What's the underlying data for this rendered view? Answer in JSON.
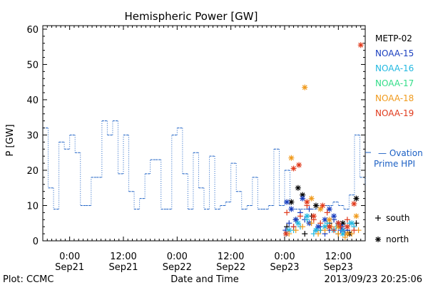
{
  "chart_data": {
    "type": "line",
    "title": "Hemispheric Power [GW]",
    "ylabel": "P [GW]",
    "xlabel": "Date and Time",
    "ylim": [
      0,
      61
    ],
    "xlim_hours": [
      -6,
      66
    ],
    "yticks": [
      0,
      10,
      20,
      30,
      40,
      50,
      60
    ],
    "xticks": [
      {
        "hour": 0,
        "time": "0:00",
        "date": "Sep21"
      },
      {
        "hour": 12,
        "time": "12:00",
        "date": "Sep21"
      },
      {
        "hour": 24,
        "time": "0:00",
        "date": "Sep22"
      },
      {
        "hour": 36,
        "time": "12:00",
        "date": "Sep22"
      },
      {
        "hour": 48,
        "time": "0:00",
        "date": "Sep23"
      },
      {
        "hour": 60,
        "time": "12:00",
        "date": "Sep23"
      }
    ],
    "footer_left": "Plot: CCMC",
    "footer_right": "2013/09/23 20:25:06",
    "legend": [
      {
        "name": "METP-02",
        "color": "#000000"
      },
      {
        "name": "NOAA-15",
        "color": "#1a3fbf"
      },
      {
        "name": "NOAA-16",
        "color": "#22b8e0"
      },
      {
        "name": "NOAA-17",
        "color": "#33dd88"
      },
      {
        "name": "NOAA-18",
        "color": "#f09a1c"
      },
      {
        "name": "NOAA-19",
        "color": "#e03a1c"
      }
    ],
    "marker_legend": [
      {
        "symbol": "+",
        "label": "south"
      },
      {
        "symbol": "*",
        "label": "north"
      }
    ],
    "ovation_label": [
      "— Ovation",
      "Prime HPI"
    ],
    "ovation_color": "#1a5fc4",
    "ovation_hpi": {
      "x": [
        -6,
        -4.8,
        -3.6,
        -2.4,
        -1.2,
        0,
        1.2,
        2.4,
        3.6,
        4.8,
        6,
        7.2,
        8.4,
        9.6,
        10.8,
        12,
        13.2,
        14.4,
        15.6,
        16.8,
        18,
        19.2,
        20.4,
        21.6,
        22.8,
        24,
        25.2,
        26.4,
        27.6,
        28.8,
        30,
        31.2,
        32.4,
        33.6,
        34.8,
        36,
        37.2,
        38.4,
        39.6,
        40.8,
        42,
        43.2,
        44.4,
        45.6,
        46.8,
        48,
        49.2,
        50.4,
        51.6,
        52.8,
        54,
        55.2,
        56.4,
        57.6,
        58.8,
        60,
        61.2,
        62.4,
        63.6,
        64.8,
        66
      ],
      "y": [
        32,
        15,
        9,
        28,
        26,
        30,
        25,
        10,
        10,
        18,
        18,
        34,
        30,
        34,
        19,
        30,
        14,
        9,
        12,
        19,
        23,
        23,
        9,
        9,
        30,
        32,
        19,
        9,
        25,
        15,
        9,
        24,
        9,
        10,
        11,
        22,
        14,
        9,
        10,
        18,
        9,
        9,
        10,
        26,
        10,
        20,
        9,
        9,
        9,
        9,
        9,
        10,
        10,
        10,
        11,
        10,
        9,
        13,
        30,
        18,
        16
      ]
    },
    "scatter": [
      {
        "sat": "METP-02",
        "marker": "+",
        "points": [
          [
            48.5,
            4
          ],
          [
            50.5,
            6
          ],
          [
            52.5,
            2
          ],
          [
            54,
            7
          ],
          [
            56,
            3
          ],
          [
            58,
            5
          ],
          [
            60,
            2
          ],
          [
            62,
            3
          ],
          [
            64,
            5
          ]
        ]
      },
      {
        "sat": "METP-02",
        "marker": "*",
        "points": [
          [
            49.5,
            11
          ],
          [
            51,
            15
          ],
          [
            52,
            13
          ],
          [
            55,
            10
          ],
          [
            58,
            4
          ],
          [
            61,
            5
          ],
          [
            62.5,
            2
          ],
          [
            64,
            12
          ]
        ]
      },
      {
        "sat": "NOAA-15",
        "marker": "+",
        "points": [
          [
            48.2,
            3
          ],
          [
            49,
            5
          ],
          [
            50,
            4
          ],
          [
            51.5,
            8
          ],
          [
            52.5,
            6
          ],
          [
            53.5,
            9
          ],
          [
            55,
            3
          ],
          [
            56,
            4
          ],
          [
            57,
            2
          ],
          [
            58,
            3
          ],
          [
            59,
            6
          ],
          [
            60,
            5
          ],
          [
            60.5,
            3
          ],
          [
            61,
            4
          ],
          [
            61.5,
            2
          ],
          [
            62,
            3
          ]
        ]
      },
      {
        "sat": "NOAA-15",
        "marker": "*",
        "points": [
          [
            48.5,
            11
          ],
          [
            49.5,
            9
          ],
          [
            50.5,
            6
          ],
          [
            52,
            12
          ],
          [
            53.5,
            5
          ],
          [
            55.5,
            4
          ],
          [
            57,
            6
          ],
          [
            58,
            9
          ],
          [
            59,
            7
          ],
          [
            60,
            5
          ],
          [
            60.5,
            4
          ],
          [
            61,
            3
          ]
        ]
      },
      {
        "sat": "NOAA-16",
        "marker": "+",
        "points": [
          [
            48.4,
            2
          ],
          [
            50,
            3
          ],
          [
            51.5,
            4
          ],
          [
            53,
            6
          ],
          [
            54.5,
            2
          ],
          [
            56,
            3
          ],
          [
            57.5,
            5
          ],
          [
            59.5,
            4
          ],
          [
            61,
            3
          ],
          [
            62.5,
            5
          ],
          [
            63.5,
            4
          ]
        ]
      },
      {
        "sat": "NOAA-16",
        "marker": "*",
        "points": [
          [
            49,
            3
          ],
          [
            51,
            5
          ],
          [
            53,
            7
          ],
          [
            55,
            3
          ],
          [
            57,
            4
          ],
          [
            59,
            3
          ],
          [
            61,
            2
          ],
          [
            63,
            5
          ]
        ]
      },
      {
        "sat": "NOAA-18",
        "marker": "+",
        "points": [
          [
            49,
            2
          ],
          [
            50.5,
            3
          ],
          [
            52,
            4
          ],
          [
            54,
            5
          ],
          [
            55.5,
            2
          ],
          [
            57,
            3
          ],
          [
            58.5,
            4
          ],
          [
            60,
            2
          ],
          [
            61.5,
            1
          ],
          [
            63,
            2
          ],
          [
            64.5,
            3
          ]
        ]
      },
      {
        "sat": "NOAA-18",
        "marker": "*",
        "points": [
          [
            49.5,
            23.5
          ],
          [
            52.5,
            43.5
          ],
          [
            54,
            12
          ],
          [
            56,
            9
          ],
          [
            58,
            6
          ],
          [
            60,
            4
          ],
          [
            62,
            2
          ],
          [
            64,
            7
          ]
        ]
      },
      {
        "sat": "NOAA-19",
        "marker": "+",
        "points": [
          [
            48.5,
            8
          ],
          [
            50,
            4
          ],
          [
            51.5,
            7
          ],
          [
            53,
            10
          ],
          [
            54.5,
            6
          ],
          [
            56,
            5
          ],
          [
            57.5,
            8
          ],
          [
            59,
            3
          ],
          [
            60.5,
            4
          ],
          [
            62,
            6
          ],
          [
            63.5,
            3
          ]
        ]
      },
      {
        "sat": "NOAA-19",
        "marker": "*",
        "points": [
          [
            48.3,
            2
          ],
          [
            50,
            20.5
          ],
          [
            51.2,
            21.5
          ],
          [
            53,
            11
          ],
          [
            54.5,
            7
          ],
          [
            56.5,
            10
          ],
          [
            58,
            4
          ],
          [
            60,
            5
          ],
          [
            62,
            4
          ],
          [
            63.5,
            10.5
          ],
          [
            65,
            55.5
          ]
        ]
      }
    ]
  }
}
